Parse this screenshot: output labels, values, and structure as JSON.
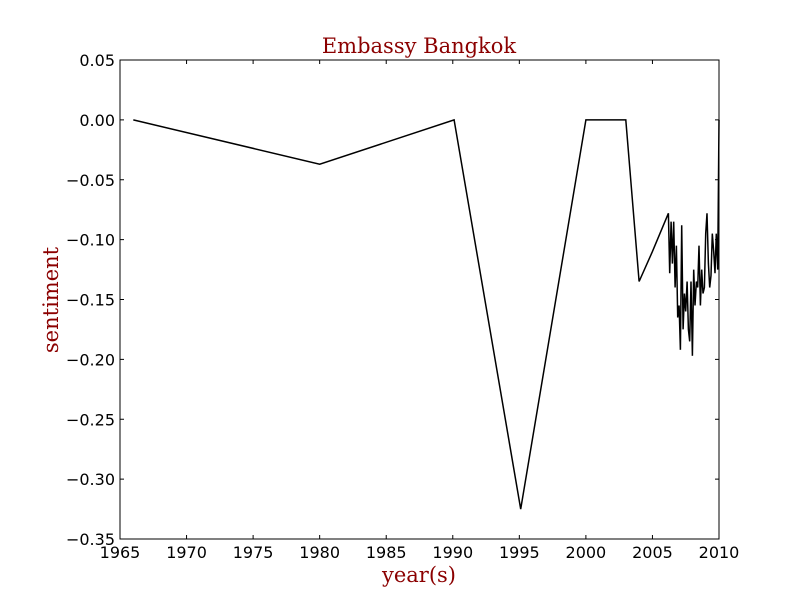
{
  "chart_data": {
    "type": "line",
    "title": "Embassy Bangkok",
    "xlabel": "year(s)",
    "ylabel": "sentiment",
    "xlim": [
      1965,
      2010
    ],
    "ylim": [
      -0.35,
      0.05
    ],
    "x_ticks": [
      1965,
      1970,
      1975,
      1980,
      1985,
      1990,
      1995,
      2000,
      2005,
      2010
    ],
    "x_tick_labels": [
      "1965",
      "1970",
      "1975",
      "1980",
      "1985",
      "1990",
      "1995",
      "2000",
      "2005",
      "2010"
    ],
    "y_ticks": [
      0.05,
      0.0,
      -0.05,
      -0.1,
      -0.15,
      -0.2,
      -0.25,
      -0.3,
      -0.35
    ],
    "y_tick_labels": [
      "0.05",
      "0.00",
      "−0.05",
      "−0.10",
      "−0.15",
      "−0.20",
      "−0.25",
      "−0.30",
      "−0.35"
    ],
    "grid": false,
    "colors": {
      "line": "#000000",
      "labels": "#8b0000"
    },
    "series": [
      {
        "x": [
          1966.0,
          1980.0,
          1990.1,
          1995.1,
          2000.0,
          2003.0,
          2004.0,
          2005.0,
          2006.2,
          2006.3,
          2006.4,
          2006.5,
          2006.6,
          2006.7,
          2006.8,
          2006.9,
          2007.0,
          2007.1,
          2007.2,
          2007.3,
          2007.4,
          2007.5,
          2007.6,
          2007.7,
          2007.8,
          2007.9,
          2008.0,
          2008.1,
          2008.2,
          2008.3,
          2008.4,
          2008.5,
          2008.6,
          2008.7,
          2008.8,
          2008.9,
          2009.0,
          2009.1,
          2009.2,
          2009.3,
          2009.4,
          2009.5,
          2009.6,
          2009.7,
          2009.8,
          2009.9,
          2010.0
        ],
        "y": [
          0.0,
          -0.037,
          0.0,
          -0.325,
          0.0,
          0.0,
          -0.135,
          -0.11,
          -0.078,
          -0.128,
          -0.085,
          -0.12,
          -0.085,
          -0.14,
          -0.105,
          -0.165,
          -0.155,
          -0.192,
          -0.088,
          -0.175,
          -0.145,
          -0.16,
          -0.135,
          -0.175,
          -0.185,
          -0.135,
          -0.197,
          -0.125,
          -0.155,
          -0.135,
          -0.14,
          -0.105,
          -0.155,
          -0.125,
          -0.145,
          -0.14,
          -0.095,
          -0.078,
          -0.12,
          -0.14,
          -0.13,
          -0.095,
          -0.11,
          -0.128,
          -0.095,
          -0.125,
          0.0
        ]
      }
    ]
  }
}
